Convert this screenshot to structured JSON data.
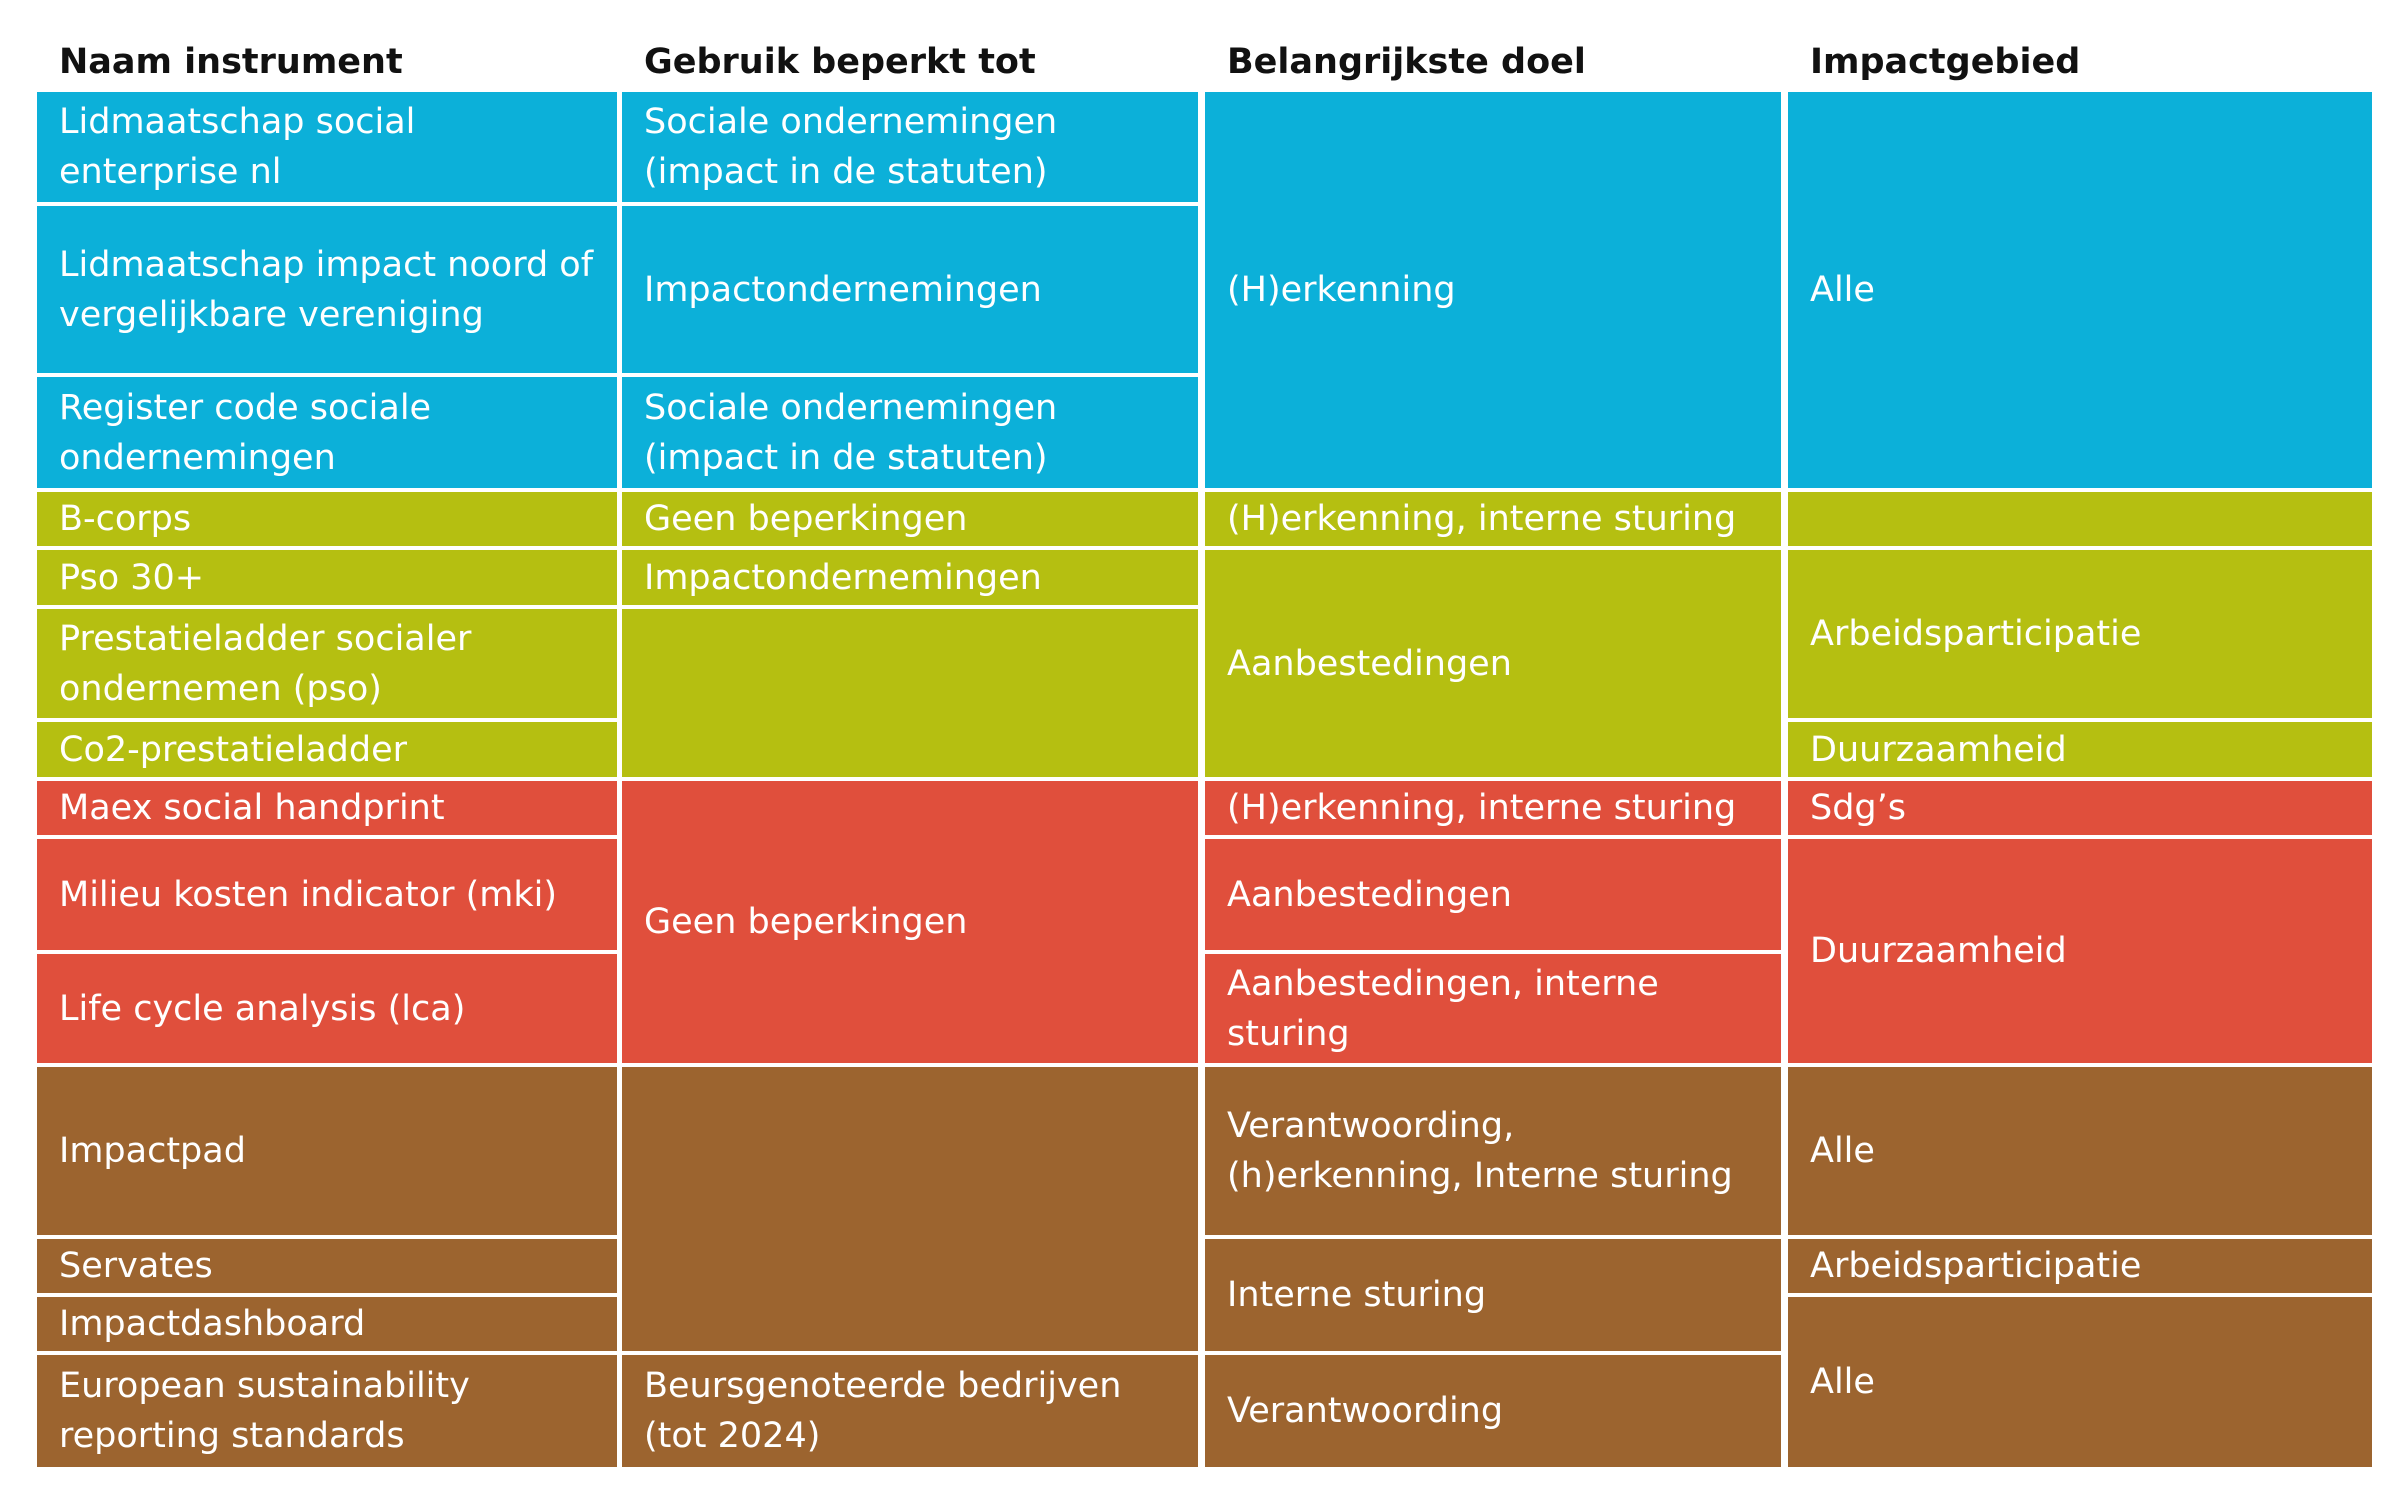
{
  "colors": {
    "blue": "#0cb0d9",
    "olive": "#b5bf11",
    "red": "#e04f3c",
    "brown": "#9c642f"
  },
  "headers": [
    "Naam instrument",
    "Gebruik beperkt tot",
    "Belangrijkste doel",
    "Impactgebied"
  ],
  "columns": [
    [
      {
        "text": "Lidmaatschap social enterprise nl",
        "color": "blue",
        "rows": [
          1,
          1
        ]
      },
      {
        "text": "Lidmaatschap impact noord of vergelijkbare vereniging",
        "color": "blue",
        "rows": [
          2,
          2
        ]
      },
      {
        "text": "Register code sociale ondernemingen",
        "color": "blue",
        "rows": [
          3,
          3
        ]
      },
      {
        "text": "B-corps",
        "color": "olive",
        "rows": [
          4,
          4
        ]
      },
      {
        "text": "Pso 30+",
        "color": "olive",
        "rows": [
          5,
          5
        ]
      },
      {
        "text": "Prestatieladder socialer ondernemen (pso)",
        "color": "olive",
        "rows": [
          6,
          6
        ]
      },
      {
        "text": "Co2-prestatieladder",
        "color": "olive",
        "rows": [
          7,
          7
        ]
      },
      {
        "text": "Maex social handprint",
        "color": "red",
        "rows": [
          8,
          8
        ]
      },
      {
        "text": "Milieu kosten indicator (mki)",
        "color": "red",
        "rows": [
          9,
          9
        ]
      },
      {
        "text": "Life cycle analysis (lca)",
        "color": "red",
        "rows": [
          10,
          10
        ]
      },
      {
        "text": "Impactpad",
        "color": "brown",
        "rows": [
          11,
          11
        ]
      },
      {
        "text": "Servates",
        "color": "brown",
        "rows": [
          12,
          12
        ]
      },
      {
        "text": "Impactdashboard",
        "color": "brown",
        "rows": [
          13,
          13
        ]
      },
      {
        "text": "European sustainability reporting standards",
        "color": "brown",
        "rows": [
          14,
          14
        ]
      }
    ],
    [
      {
        "text": "Sociale ondernemingen (impact in de statuten)",
        "color": "blue",
        "rows": [
          1,
          1
        ]
      },
      {
        "text": "Impactondernemingen",
        "color": "blue",
        "rows": [
          2,
          2
        ]
      },
      {
        "text": "Sociale ondernemingen (impact in de statuten)",
        "color": "blue",
        "rows": [
          3,
          3
        ]
      },
      {
        "text": "Geen beperkingen",
        "color": "olive",
        "rows": [
          4,
          4
        ]
      },
      {
        "text": "Impactondernemingen",
        "color": "olive",
        "rows": [
          5,
          5
        ]
      },
      {
        "text": "",
        "color": "olive",
        "rows": [
          6,
          7
        ]
      },
      {
        "text": "Geen beperkingen",
        "color": "red",
        "rows": [
          8,
          10
        ]
      },
      {
        "text": "",
        "color": "brown",
        "rows": [
          11,
          13
        ]
      },
      {
        "text": "Beursgenoteerde bedrijven (tot 2024)",
        "color": "brown",
        "rows": [
          14,
          14
        ]
      }
    ],
    [
      {
        "text": "(H)erkenning",
        "color": "blue",
        "rows": [
          1,
          3
        ]
      },
      {
        "text": "(H)erkenning, interne sturing",
        "color": "olive",
        "rows": [
          4,
          4
        ]
      },
      {
        "text": "Aanbestedingen",
        "color": "olive",
        "rows": [
          5,
          7
        ]
      },
      {
        "text": "(H)erkenning, interne sturing",
        "color": "red",
        "rows": [
          8,
          8
        ]
      },
      {
        "text": "Aanbestedingen",
        "color": "red",
        "rows": [
          9,
          9
        ]
      },
      {
        "text": "Aanbestedingen, interne sturing",
        "color": "red",
        "rows": [
          10,
          10
        ]
      },
      {
        "text": "Verantwoording, (h)erkenning, Interne sturing",
        "color": "brown",
        "rows": [
          11,
          11
        ]
      },
      {
        "text": "Interne sturing",
        "color": "brown",
        "rows": [
          12,
          13
        ]
      },
      {
        "text": "Verantwoording",
        "color": "brown",
        "rows": [
          14,
          14
        ]
      }
    ],
    [
      {
        "text": "Alle",
        "color": "blue",
        "rows": [
          1,
          3
        ]
      },
      {
        "text": "",
        "color": "olive",
        "rows": [
          4,
          4
        ]
      },
      {
        "text": "Arbeidsparticipatie",
        "color": "olive",
        "rows": [
          5,
          6
        ]
      },
      {
        "text": "Duurzaamheid",
        "color": "olive",
        "rows": [
          7,
          7
        ]
      },
      {
        "text": "Sdg’s",
        "color": "red",
        "rows": [
          8,
          8
        ]
      },
      {
        "text": "Duurzaamheid",
        "color": "red",
        "rows": [
          9,
          10
        ]
      },
      {
        "text": "Alle",
        "color": "brown",
        "rows": [
          11,
          11
        ]
      },
      {
        "text": "Arbeidsparticipatie",
        "color": "brown",
        "rows": [
          12,
          12
        ]
      },
      {
        "text": "Alle",
        "color": "brown",
        "rows": [
          13,
          14
        ]
      }
    ]
  ]
}
